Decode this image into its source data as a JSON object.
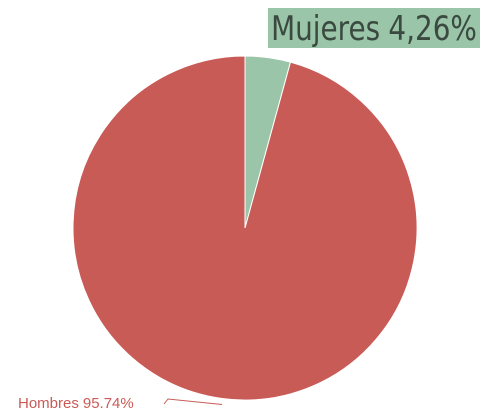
{
  "chart_data": {
    "type": "pie",
    "categories": [
      "Mujeres",
      "Hombres"
    ],
    "values": [
      4.26,
      95.74
    ],
    "value_labels": [
      "4,26%",
      "95.74%"
    ],
    "colors": [
      "#9ac5a8",
      "#c95b57"
    ]
  }
}
